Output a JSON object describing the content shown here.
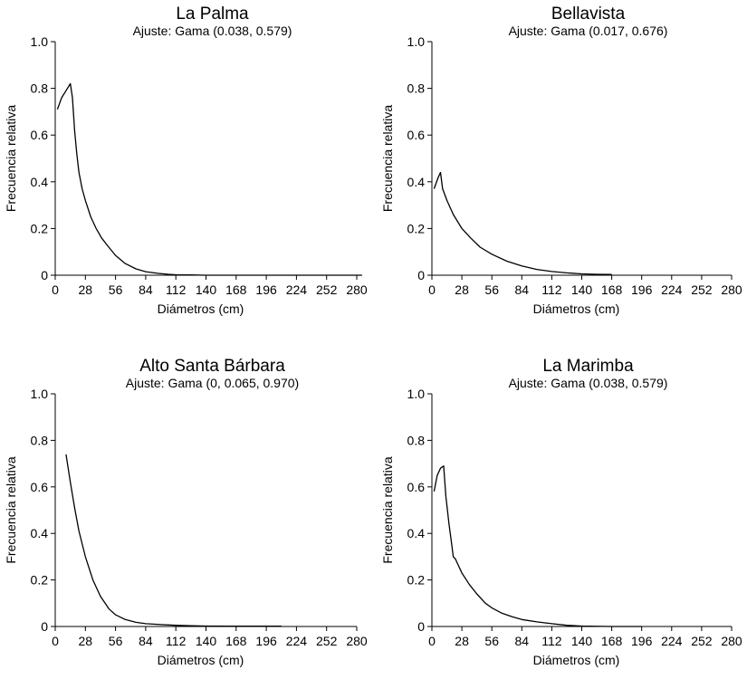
{
  "chart_data": [
    {
      "type": "line",
      "title": "La Palma",
      "subtitle": "Ajuste: Gama (0.038, 0.579)",
      "xlabel": "Diámetros (cm)",
      "ylabel": "Frecuencia relativa",
      "xlim": [
        0,
        280
      ],
      "ylim": [
        0,
        1.0
      ],
      "xticks": [
        "0",
        "28",
        "56",
        "84",
        "112",
        "140",
        "168",
        "196",
        "224",
        "252",
        "280"
      ],
      "yticks": [
        "0",
        "0.2",
        "0.4",
        "0.6",
        "0.8",
        "1.0"
      ],
      "grid": false,
      "series": [
        {
          "x": [
            2,
            6,
            10,
            14,
            16,
            18,
            20,
            22,
            25,
            28,
            33,
            38,
            43,
            48,
            56,
            65,
            75,
            84,
            95,
            105,
            112,
            126,
            140,
            154,
            168,
            182,
            196,
            224,
            252,
            280,
            285
          ],
          "y": [
            0.71,
            0.76,
            0.79,
            0.82,
            0.76,
            0.62,
            0.52,
            0.44,
            0.37,
            0.32,
            0.25,
            0.2,
            0.16,
            0.13,
            0.085,
            0.05,
            0.027,
            0.015,
            0.008,
            0.004,
            0.002,
            0.001,
            0,
            0,
            0,
            0,
            0,
            0,
            0,
            0,
            0
          ]
        }
      ]
    },
    {
      "type": "line",
      "title": "Bellavista",
      "subtitle": "Ajuste: Gama (0.017, 0.676)",
      "xlabel": "Diámetros (cm)",
      "ylabel": "Frecuencia relativa",
      "xlim": [
        0,
        280
      ],
      "ylim": [
        0,
        1.0
      ],
      "xticks": [
        "0",
        "28",
        "56",
        "84",
        "112",
        "140",
        "168",
        "196",
        "224",
        "252",
        "280"
      ],
      "yticks": [
        "0",
        "0.2",
        "0.4",
        "0.6",
        "0.8",
        "1.0"
      ],
      "grid": false,
      "series": [
        {
          "x": [
            2,
            6,
            8,
            10,
            14,
            20,
            28,
            36,
            45,
            56,
            70,
            84,
            98,
            112,
            126,
            140,
            154,
            168
          ],
          "y": [
            0.37,
            0.42,
            0.44,
            0.37,
            0.32,
            0.26,
            0.2,
            0.16,
            0.12,
            0.09,
            0.06,
            0.04,
            0.025,
            0.016,
            0.01,
            0.006,
            0.004,
            0.003
          ]
        }
      ]
    },
    {
      "type": "line",
      "title": "Alto Santa Bárbara",
      "subtitle": "Ajuste: Gama (0, 0.065, 0.970)",
      "xlabel": "Diámetros (cm)",
      "ylabel": "Frecuencia relativa",
      "xlim": [
        0,
        280
      ],
      "ylim": [
        0,
        1.0
      ],
      "xticks": [
        "0",
        "28",
        "56",
        "84",
        "112",
        "140",
        "168",
        "196",
        "224",
        "252",
        "280"
      ],
      "yticks": [
        "0",
        "0.2",
        "0.4",
        "0.6",
        "0.8",
        "1.0"
      ],
      "grid": false,
      "series": [
        {
          "x": [
            10,
            14,
            18,
            22,
            28,
            35,
            42,
            50,
            56,
            65,
            75,
            84,
            98,
            112,
            126,
            140,
            168,
            196,
            210
          ],
          "y": [
            0.74,
            0.62,
            0.51,
            0.41,
            0.3,
            0.2,
            0.13,
            0.075,
            0.05,
            0.03,
            0.018,
            0.012,
            0.008,
            0.005,
            0.003,
            0.002,
            0.001,
            0.001,
            0.001
          ]
        }
      ]
    },
    {
      "type": "line",
      "title": "La Marimba",
      "subtitle": "Ajuste: Gama (0.038, 0.579)",
      "xlabel": "Diámetros (cm)",
      "ylabel": "Frecuencia relativa",
      "xlim": [
        0,
        280
      ],
      "ylim": [
        0,
        1.0
      ],
      "xticks": [
        "0",
        "28",
        "56",
        "84",
        "112",
        "140",
        "168",
        "196",
        "224",
        "252",
        "280"
      ],
      "yticks": [
        "0",
        "0.2",
        "0.4",
        "0.6",
        "0.8",
        "1.0"
      ],
      "grid": false,
      "series": [
        {
          "x": [
            2,
            5,
            8,
            11,
            13,
            16,
            18,
            20,
            22,
            28,
            35,
            42,
            50,
            56,
            65,
            75,
            84,
            98,
            112,
            126,
            140,
            168,
            196
          ],
          "y": [
            0.58,
            0.65,
            0.68,
            0.69,
            0.56,
            0.44,
            0.37,
            0.3,
            0.29,
            0.23,
            0.18,
            0.14,
            0.1,
            0.08,
            0.058,
            0.042,
            0.03,
            0.02,
            0.012,
            0.005,
            0.002,
            0,
            0
          ]
        }
      ]
    }
  ]
}
